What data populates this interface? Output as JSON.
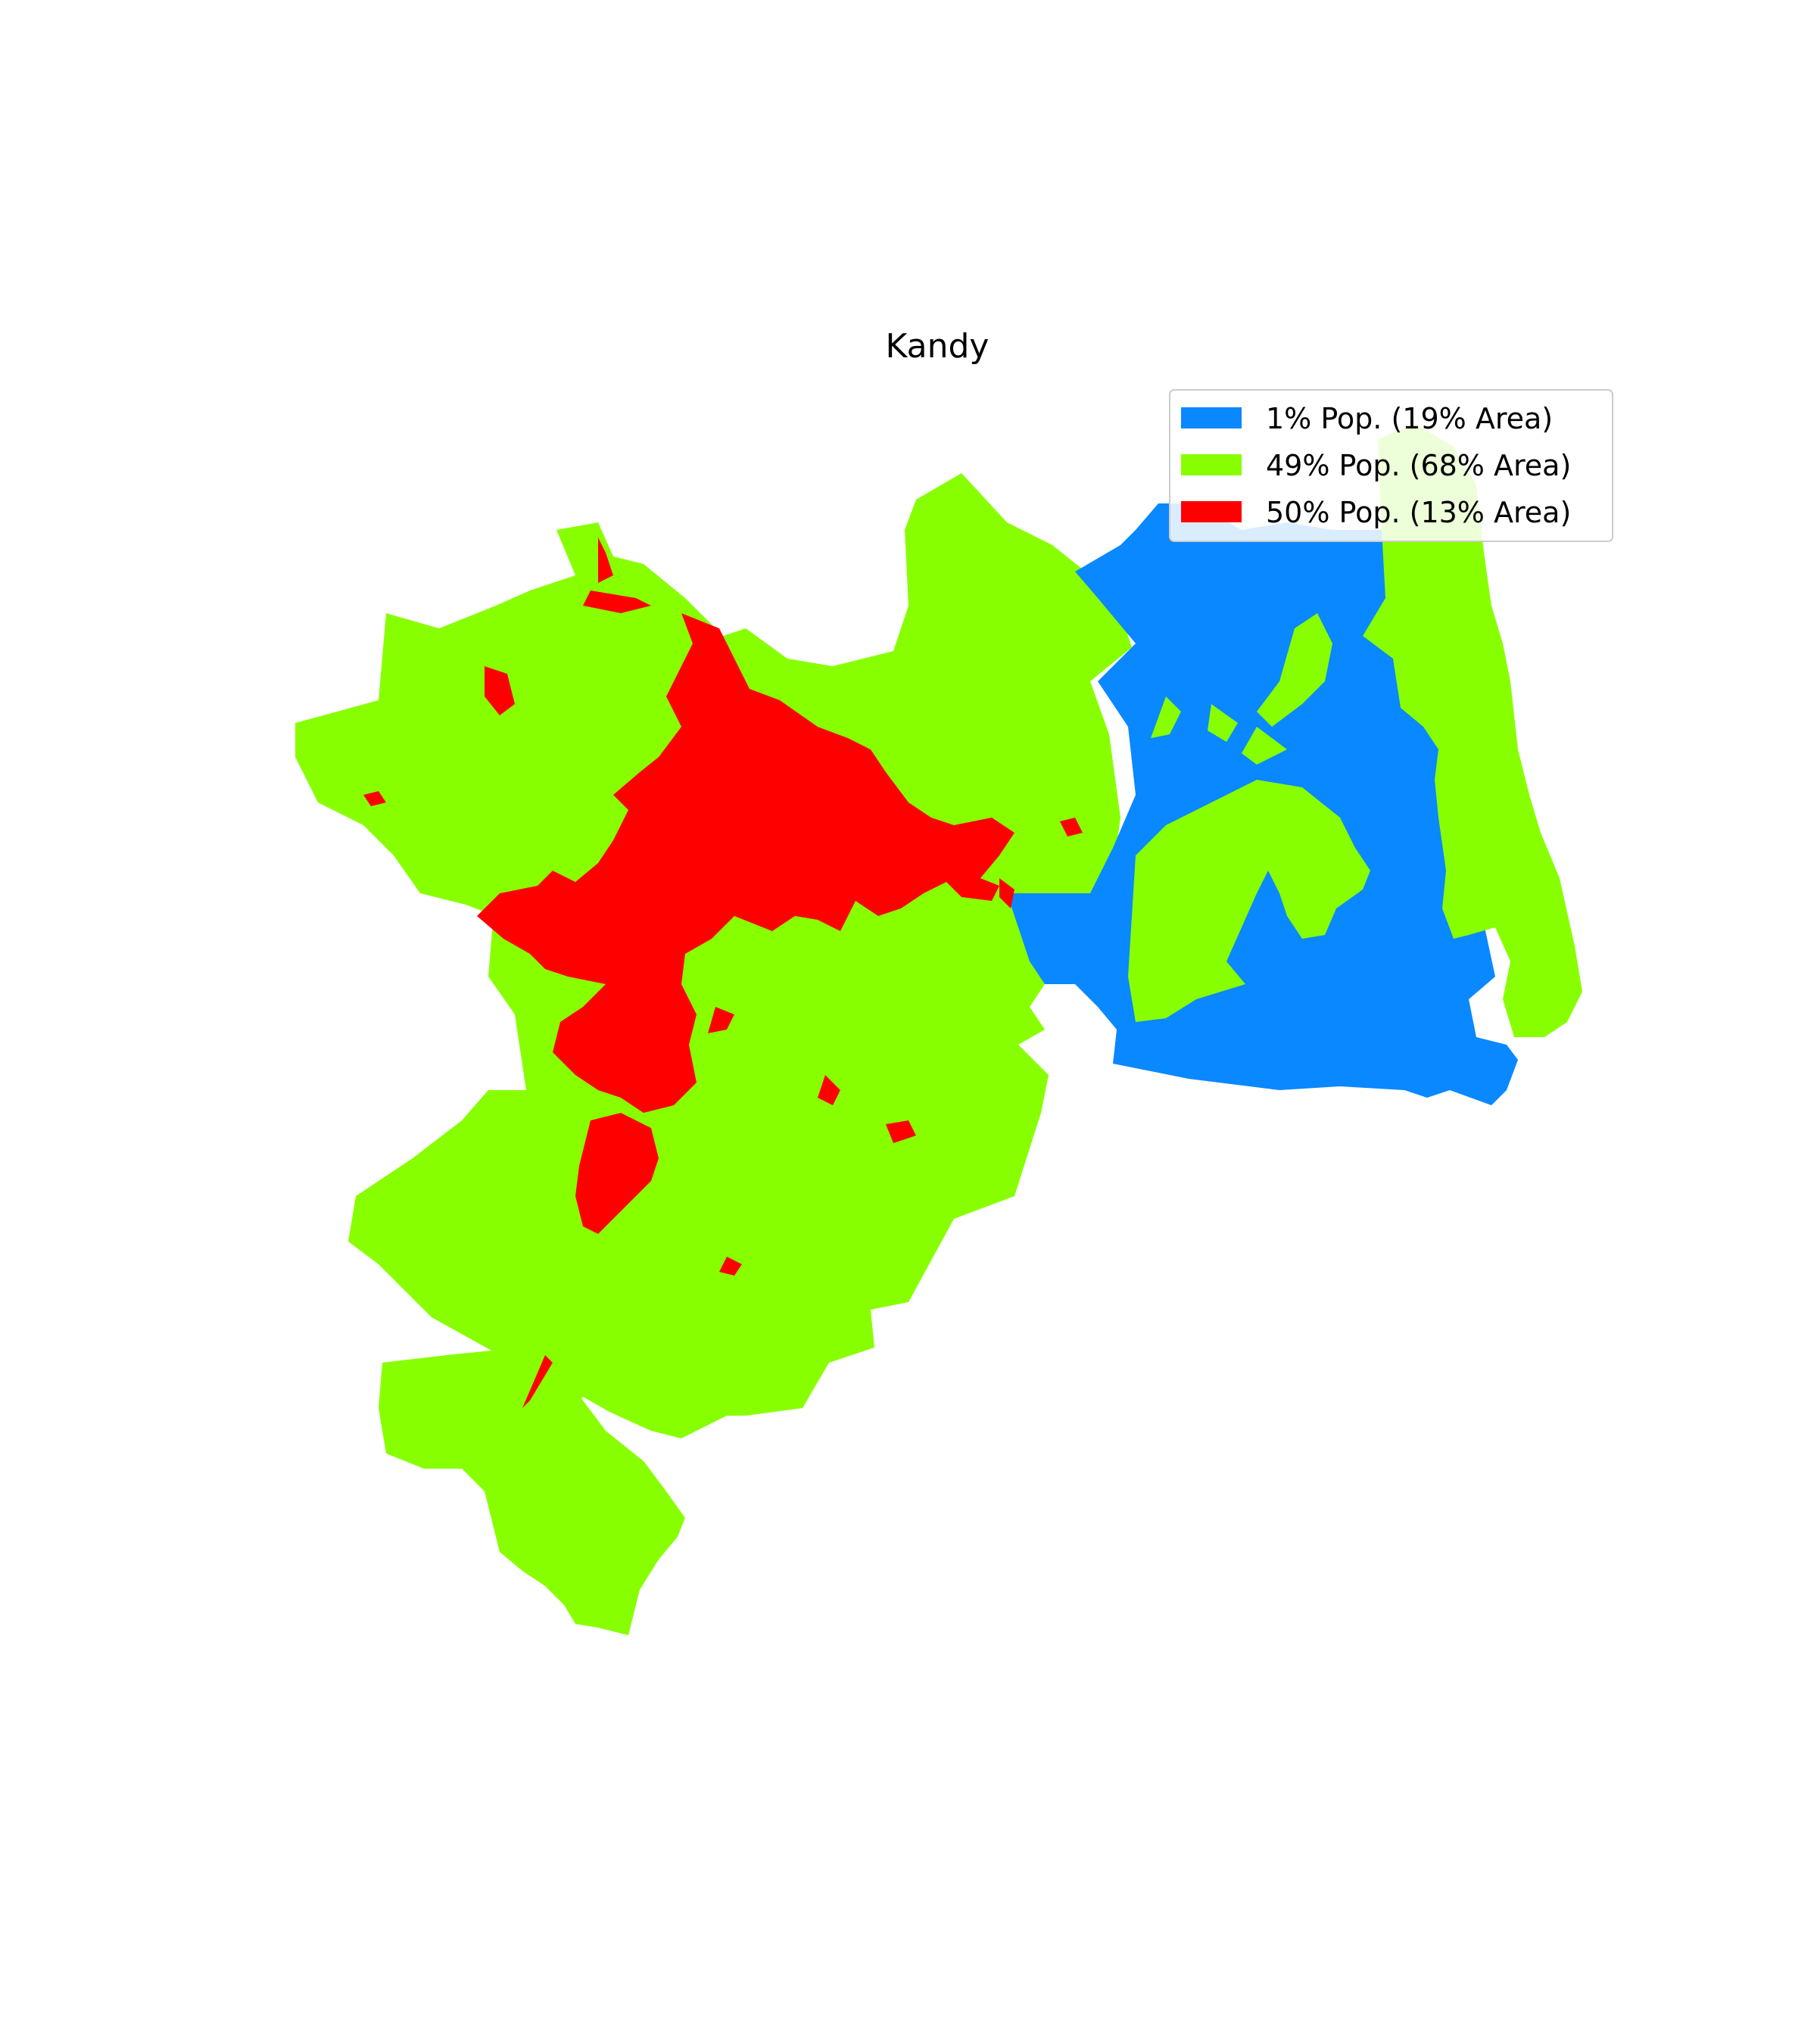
{
  "map": {
    "title": "Kandy",
    "legend": [
      {
        "label": "1% Pop. (19% Area)",
        "color": "#0a88ff"
      },
      {
        "label": "49% Pop. (68% Area)",
        "color": "#88ff00"
      },
      {
        "label": "50% Pop. (13% Area)",
        "color": "#ff0000"
      }
    ],
    "legend_position": "top-right",
    "region_colors": {
      "low_density": "#0a88ff",
      "medium_density": "#88ff00",
      "high_density": "#ff0000"
    }
  }
}
